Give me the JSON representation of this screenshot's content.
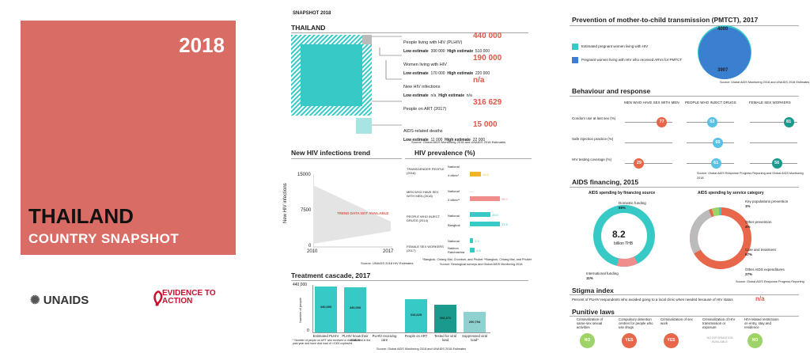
{
  "cover": {
    "year": "2018",
    "country": "THAILAND",
    "subtitle": "COUNTRY SNAPSHOT"
  },
  "logos": {
    "unaids": "UNAIDS",
    "evidence": "EVIDENCE TO ACTION"
  },
  "snapshot": {
    "kicker": "SNAPSHOT 2018",
    "title": "THAILAND",
    "rows": [
      {
        "label": "People living with HIV (PLHIV)",
        "value": "440 000",
        "low_label": "Low estimate",
        "low": "390 000",
        "high_label": "High estimate",
        "high": "510 000"
      },
      {
        "label": "Women living with HIV",
        "value": "190 000",
        "low_label": "Low estimate",
        "low": "170 000",
        "high_label": "High estimate",
        "high": "220 000"
      },
      {
        "label": "New HIV infections",
        "value": "n/a",
        "low_label": "Low estimate",
        "low": "n/a",
        "high_label": "High estimate",
        "high": "n/a"
      },
      {
        "label": "People on ART (2017)",
        "value": "316 629"
      },
      {
        "label": "AIDS-related  deaths",
        "value": "15 000",
        "low_label": "Low estimate",
        "low": "11 000",
        "high_label": "High estimate",
        "high": "22 000"
      }
    ],
    "source": "Source: Global AIDS Monitoring 2018 and UNAIDS 2018 Estimates"
  },
  "trend": {
    "title": "New HIV infections trend",
    "ylabel": "New HIV infections",
    "yticks": [
      "15000",
      "7500",
      "0"
    ],
    "xticks": [
      "2010",
      "2017"
    ],
    "overlay": "TREND DATA NOT AVAILABLE",
    "source": "Source: UNAIDS 2018 HIV Estimates"
  },
  "prevalence": {
    "title": "HIV prevalence (%)",
    "groups": [
      {
        "name": "TRANSGENDER PEOPLE (2016)",
        "rows": [
          {
            "label": "National",
            "value": ""
          },
          {
            "label": "4 cities*",
            "value": "12.6"
          }
        ]
      },
      {
        "name": "MEN WHO HAVE SEX WITH MEN (2018)",
        "rows": [
          {
            "label": "National",
            "value": "...."
          },
          {
            "label": "3 cities**",
            "value": "35.2"
          }
        ]
      },
      {
        "name": "PEOPLE WHO INJECT DRUGS (2014)",
        "rows": [
          {
            "label": "National",
            "value": "25.0"
          },
          {
            "label": "Bangkok",
            "value": "37.6"
          }
        ]
      },
      {
        "name": "FEMALE SEX WORKERS (2017)",
        "rows": [
          {
            "label": "National",
            "value": "2.3"
          },
          {
            "label": "Nakhon Ratchasima",
            "value": "4.8"
          }
        ]
      }
    ],
    "footnote": "*Bangkok, Chiang Mai, Chonburi, and Phuket  **Bangkok, Chiang Mai, and Phuket",
    "source": "Source: Serological surveys and Global AIDS Monitoring 2018"
  },
  "cascade": {
    "title": "Treatment cascade, 2017",
    "ylabel": "Number of people",
    "ymax": "440,000",
    "ymin": "0",
    "bars": [
      {
        "label": "Estimated PLHIV",
        "value": "440,000"
      },
      {
        "label": "PLHIV know their status",
        "value": "430,000"
      },
      {
        "label": "PLHIV receiving care",
        "value": ""
      },
      {
        "label": "People on ART",
        "value": "316,629"
      },
      {
        "label": "Tested for viral load",
        "value": "266,272"
      },
      {
        "label": "Suppressed viral load*",
        "value": "200,794"
      }
    ],
    "footnote": "* Number of people on ART who received a viral load test in the past year and have viral load of <1000 copies/ml",
    "source": "Source: Global AIDS Monitoring 2018 and UNAIDS 2018 Estimates"
  },
  "pmtct": {
    "title": "Prevention of mother-to-child transmission (PMTCT), 2017",
    "legend": [
      "Estimated pregnant women living with HIV",
      "Pregnant women living with HIV who received ARVs for PMTCT"
    ],
    "top_value": "4000",
    "bottom_value": "3907",
    "source": "Source: Global AIDS Monitoring 2018 and UNAIDS 2018 Estimates"
  },
  "behaviour": {
    "title": "Behaviour and response",
    "columns": [
      "MEN WHO HAVE SEX WITH MEN",
      "PEOPLE WHO INJECT DRUGS",
      "FEMALE SEX WORKERS"
    ],
    "rows": [
      {
        "label": "Condom use at last sex (%)",
        "values": [
          "77",
          "53",
          "81"
        ]
      },
      {
        "label": "Safe injection practice (%)",
        "values": [
          "",
          "65",
          ""
        ]
      },
      {
        "label": "HIV testing coverage (%)",
        "values": [
          "29",
          "61",
          "56"
        ]
      }
    ],
    "source": "Source: Global AIDS Response Progress Reporting and Global AIDS Monitoring 2018"
  },
  "financing": {
    "title": "AIDS financing, 2015",
    "left_title": "AIDS spending by financing source",
    "right_title": "AIDS spending by service category",
    "center_value": "8.2",
    "center_unit": "billion THB",
    "left_labels": [
      {
        "name": "Domestic funding",
        "pct": "89%"
      },
      {
        "name": "International funding",
        "pct": "11%"
      }
    ],
    "right_labels": [
      {
        "name": "Key populations prevention",
        "pct": "1%"
      },
      {
        "name": "Other prevention",
        "pct": "4%"
      },
      {
        "name": "Care and treatment",
        "pct": "67%"
      },
      {
        "name": "Other AIDS expenditures",
        "pct": "27%"
      }
    ],
    "source": "Source: Global AIDS Response Progress Reporting"
  },
  "stigma": {
    "title": "Stigma index",
    "text": "Percent of PLHIV respondents who avoided going to a local clinic when needed because of HIV status",
    "value": "n/a"
  },
  "punitive": {
    "title": "Punitive laws",
    "items": [
      {
        "label": "Criminalization of same-sex sexual activities",
        "answer": "NO"
      },
      {
        "label": "Compulsory detention centres for people who use drugs",
        "answer": "YES"
      },
      {
        "label": "Criminalization of sex work",
        "answer": "YES"
      },
      {
        "label": "Criminalization of HIV transmission or exposure",
        "answer": "NO INFORMATION AVAILABLE"
      },
      {
        "label": "HIV-related restrictions on entry, stay and residence",
        "answer": "NO"
      }
    ]
  },
  "colors": {
    "cover": "#d96c64",
    "teal": "#36c9c6",
    "red": "#e0574a",
    "orange": "#e8664a",
    "yellow": "#f0b428",
    "salmon": "#f08c8c",
    "blue": "#3a7fd0",
    "darkteal": "#1a9a8c",
    "grey": "#bbbbbb"
  }
}
